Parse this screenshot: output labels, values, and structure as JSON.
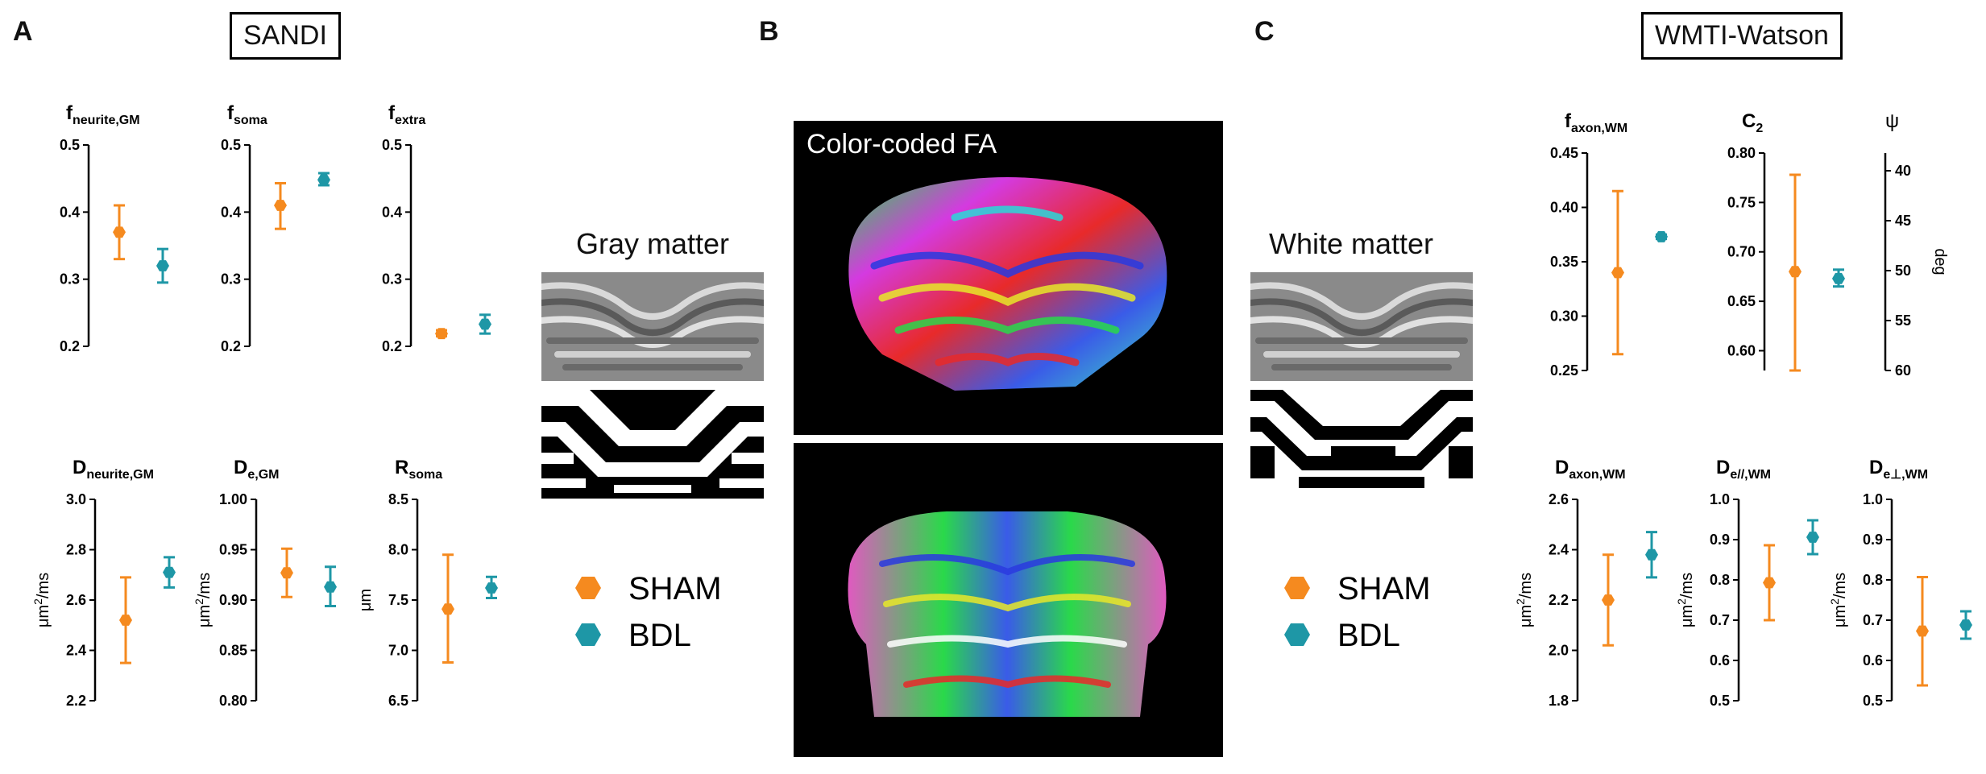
{
  "panels": {
    "a": {
      "label": "A",
      "title": "SANDI"
    },
    "b": {
      "label": "B",
      "fa_label": "Color-coded FA"
    },
    "c": {
      "label": "C",
      "title": "WMTI-Watson"
    }
  },
  "masks": {
    "gray_title": "Gray matter",
    "white_title": "White matter"
  },
  "legend": {
    "sham": "SHAM",
    "bdl": "BDL",
    "sham_color": "#F58A1F",
    "bdl_color": "#1E97A6"
  },
  "units": {
    "diff": "μm",
    "diff_exp": "2",
    "diff_tail": "/ms",
    "radius": "μm",
    "deg": "deg"
  },
  "chart_data": [
    {
      "type": "scatter",
      "title_main": "f",
      "title_sub": "neurite,GM",
      "ylim": [
        0.2,
        0.5
      ],
      "yticks": [
        "0.2",
        "0.3",
        "0.4",
        "0.5"
      ],
      "series": [
        {
          "name": "SHAM",
          "y": 0.37,
          "err_low": 0.33,
          "err_high": 0.41
        },
        {
          "name": "BDL",
          "y": 0.32,
          "err_low": 0.295,
          "err_high": 0.345
        }
      ]
    },
    {
      "type": "scatter",
      "title_main": "f",
      "title_sub": "soma",
      "ylim": [
        0.2,
        0.5
      ],
      "yticks": [
        "0.2",
        "0.3",
        "0.4",
        "0.5"
      ],
      "series": [
        {
          "name": "SHAM",
          "y": 0.41,
          "err_low": 0.375,
          "err_high": 0.443
        },
        {
          "name": "BDL",
          "y": 0.448,
          "err_low": 0.44,
          "err_high": 0.458
        }
      ]
    },
    {
      "type": "scatter",
      "title_main": "f",
      "title_sub": "extra",
      "ylim": [
        0.2,
        0.5
      ],
      "yticks": [
        "0.2",
        "0.3",
        "0.4",
        "0.5"
      ],
      "series": [
        {
          "name": "SHAM",
          "y": 0.219,
          "err_low": 0.215,
          "err_high": 0.224
        },
        {
          "name": "BDL",
          "y": 0.233,
          "err_low": 0.219,
          "err_high": 0.247
        }
      ]
    },
    {
      "type": "scatter",
      "title_main": "D",
      "title_sub": "neurite,GM",
      "ylabel": "diff",
      "ylim": [
        2.2,
        3.0
      ],
      "yticks": [
        "2.2",
        "2.4",
        "2.6",
        "2.8",
        "3.0"
      ],
      "series": [
        {
          "name": "SHAM",
          "y": 2.52,
          "err_low": 2.35,
          "err_high": 2.69
        },
        {
          "name": "BDL",
          "y": 2.71,
          "err_low": 2.65,
          "err_high": 2.77
        }
      ]
    },
    {
      "type": "scatter",
      "title_main": "D",
      "title_sub": "e,GM",
      "ylabel": "diff",
      "ylim": [
        0.8,
        1.0
      ],
      "yticks": [
        "0.80",
        "0.85",
        "0.90",
        "0.95",
        "1.00"
      ],
      "series": [
        {
          "name": "SHAM",
          "y": 0.927,
          "err_low": 0.903,
          "err_high": 0.951
        },
        {
          "name": "BDL",
          "y": 0.913,
          "err_low": 0.894,
          "err_high": 0.933
        }
      ]
    },
    {
      "type": "scatter",
      "title_main": "R",
      "title_sub": "soma",
      "ylabel": "radius",
      "ylim": [
        6.5,
        8.5
      ],
      "yticks": [
        "6.5",
        "7.0",
        "7.5",
        "8.0",
        "8.5"
      ],
      "series": [
        {
          "name": "SHAM",
          "y": 7.41,
          "err_low": 6.88,
          "err_high": 7.95
        },
        {
          "name": "BDL",
          "y": 7.62,
          "err_low": 7.52,
          "err_high": 7.73
        }
      ]
    },
    {
      "type": "scatter",
      "title_main": "f",
      "title_sub": "axon,WM",
      "ylim": [
        0.25,
        0.45
      ],
      "yticks": [
        "0.25",
        "0.30",
        "0.35",
        "0.40",
        "0.45"
      ],
      "series": [
        {
          "name": "SHAM",
          "y": 0.34,
          "err_low": 0.265,
          "err_high": 0.415
        },
        {
          "name": "BDL",
          "y": 0.373,
          "err_low": 0.371,
          "err_high": 0.375
        }
      ]
    },
    {
      "type": "scatter",
      "title_main": "C",
      "title_sub": "2",
      "title2": "ψ",
      "ylim": [
        0.58,
        0.8
      ],
      "yticks": [
        "0.60",
        "0.65",
        "0.70",
        "0.75",
        "0.80"
      ],
      "y2label": "deg",
      "y2ticks": [
        "40",
        "45",
        "50",
        "55",
        "60"
      ],
      "series": [
        {
          "name": "SHAM",
          "y": 0.68,
          "err_low": 0.58,
          "err_high": 0.778
        },
        {
          "name": "BDL",
          "y": 0.673,
          "err_low": 0.665,
          "err_high": 0.682
        }
      ]
    },
    {
      "type": "scatter",
      "title_main": "D",
      "title_sub": "axon,WM",
      "ylabel": "diff",
      "ylim": [
        1.8,
        2.6
      ],
      "yticks": [
        "1.8",
        "2.0",
        "2.2",
        "2.4",
        "2.6"
      ],
      "series": [
        {
          "name": "SHAM",
          "y": 2.2,
          "err_low": 2.02,
          "err_high": 2.38
        },
        {
          "name": "BDL",
          "y": 2.38,
          "err_low": 2.29,
          "err_high": 2.47
        }
      ]
    },
    {
      "type": "scatter",
      "title_main": "D",
      "title_sub": "e//,WM",
      "ylabel": "diff",
      "ylim": [
        0.5,
        1.0
      ],
      "yticks": [
        "0.5",
        "0.6",
        "0.7",
        "0.8",
        "0.9",
        "1.0"
      ],
      "series": [
        {
          "name": "SHAM",
          "y": 0.793,
          "err_low": 0.7,
          "err_high": 0.886
        },
        {
          "name": "BDL",
          "y": 0.906,
          "err_low": 0.864,
          "err_high": 0.948
        }
      ]
    },
    {
      "type": "scatter",
      "title_main": "D",
      "title_sub": "e⊥,WM",
      "ylabel": "diff",
      "ylim": [
        0.5,
        1.0
      ],
      "yticks": [
        "0.5",
        "0.6",
        "0.7",
        "0.8",
        "0.9",
        "1.0"
      ],
      "series": [
        {
          "name": "SHAM",
          "y": 0.673,
          "err_low": 0.538,
          "err_high": 0.807
        },
        {
          "name": "BDL",
          "y": 0.688,
          "err_low": 0.654,
          "err_high": 0.722
        }
      ]
    }
  ]
}
